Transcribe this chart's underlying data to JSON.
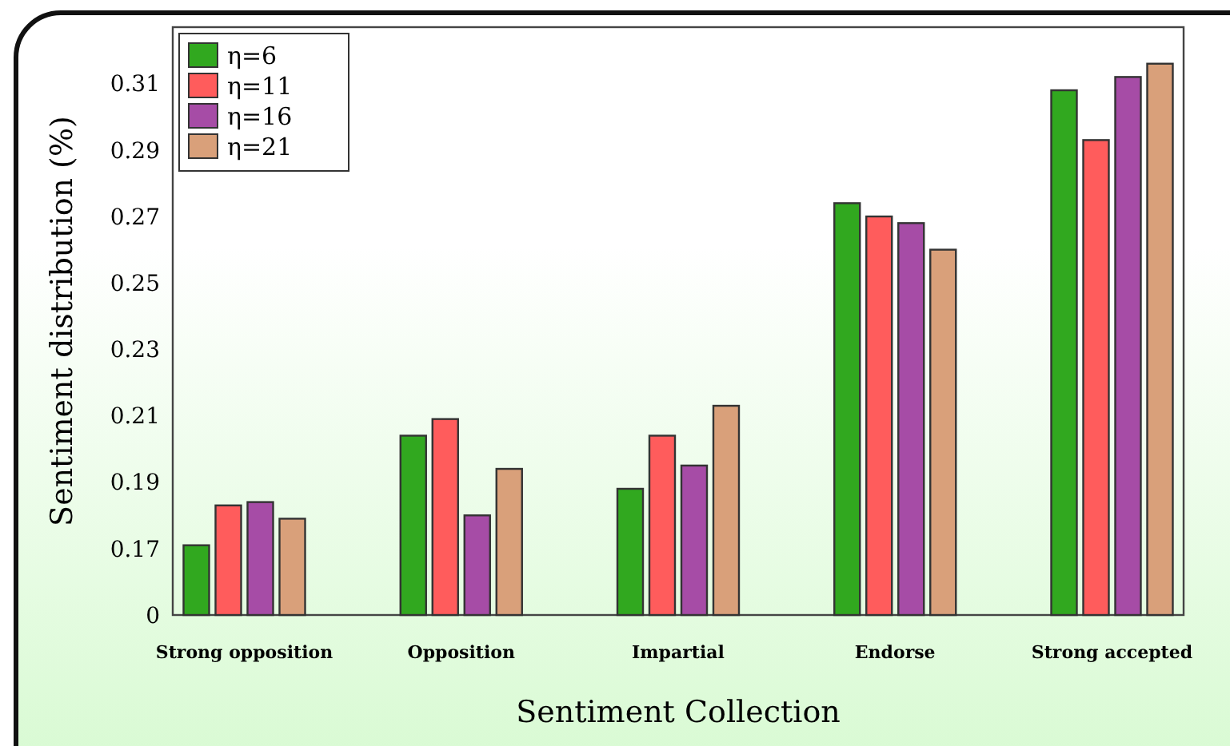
{
  "chart_data": {
    "type": "bar",
    "xlabel": "Sentiment Collection",
    "ylabel": "Sentiment distribution (%)",
    "categories": [
      "Strong opposition",
      "Opposition",
      "Impartial",
      "Endorse",
      "Strong accepted"
    ],
    "series": [
      {
        "name": "η=6",
        "color": "#31a81f",
        "values": [
          0.171,
          0.204,
          0.188,
          0.274,
          0.308
        ]
      },
      {
        "name": "η=11",
        "color": "#ff5c5c",
        "values": [
          0.183,
          0.209,
          0.204,
          0.27,
          0.293
        ]
      },
      {
        "name": "η=16",
        "color": "#a64ca6",
        "values": [
          0.184,
          0.18,
          0.195,
          0.268,
          0.312
        ]
      },
      {
        "name": "η=21",
        "color": "#d9a07a",
        "values": [
          0.179,
          0.194,
          0.213,
          0.26,
          0.316
        ]
      }
    ],
    "ylim": [
      0.15,
      0.327
    ],
    "yticks": [
      {
        "value": 0.15,
        "label": "0"
      },
      0.17,
      0.19,
      0.21,
      0.23,
      0.25,
      0.27,
      0.29,
      0.31
    ],
    "grid": false,
    "legend": "top left"
  }
}
